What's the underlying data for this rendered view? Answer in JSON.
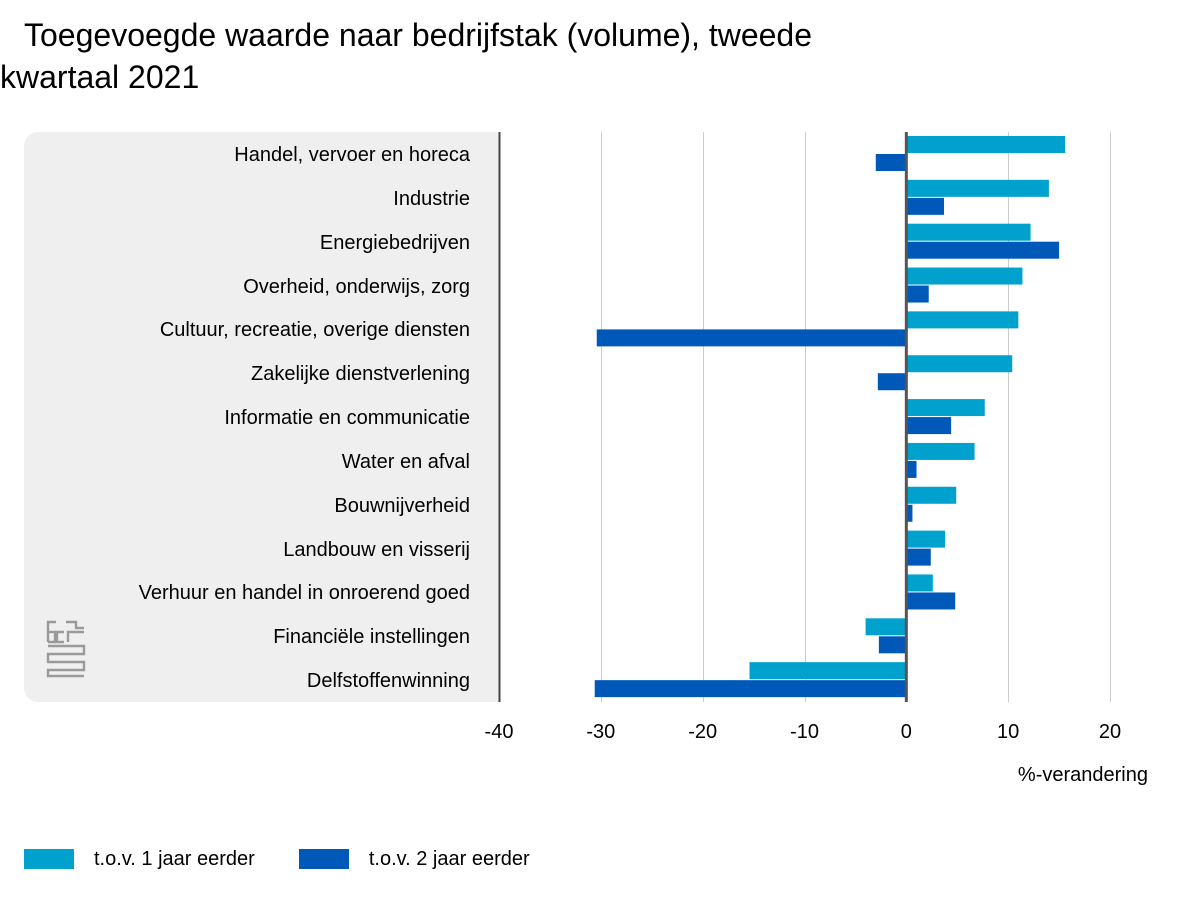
{
  "chart_data": {
    "type": "bar",
    "orientation": "horizontal",
    "title": "Toegevoegde waarde naar bedrijfstak (volume), tweede kwartaal 2021",
    "xlabel": "%-verandering",
    "ylabel": "",
    "xlim": [
      -40,
      20
    ],
    "xticks": [
      -40,
      -30,
      -20,
      -10,
      0,
      10,
      20
    ],
    "grid": true,
    "legend_position": "bottom-left",
    "categories": [
      "Handel, vervoer en horeca",
      "Industrie",
      "Energiebedrijven",
      "Overheid, onderwijs, zorg",
      "Cultuur, recreatie, overige diensten",
      "Zakelijke dienstverlening",
      "Informatie en communicatie",
      "Water en afval",
      "Bouwnijverheid",
      "Landbouw en visserij",
      "Verhuur en handel in onroerend goed",
      "Financiële instellingen",
      "Delfstoffenwinning"
    ],
    "series": [
      {
        "name": "t.o.v. 1 jaar eerder",
        "color": "#00a1cd",
        "values": [
          15.6,
          14.0,
          12.2,
          11.4,
          11.0,
          10.4,
          7.7,
          6.7,
          4.9,
          3.8,
          2.6,
          -4.0,
          -15.4
        ]
      },
      {
        "name": "t.o.v. 2 jaar eerder",
        "color": "#0058b8",
        "values": [
          -3.0,
          3.7,
          15.0,
          2.2,
          -30.4,
          -2.8,
          4.4,
          1.0,
          0.6,
          2.4,
          4.8,
          -2.7,
          -30.6
        ]
      }
    ]
  },
  "colors": {
    "panel_background": "#efefef",
    "gridline": "#cccccc",
    "zero_axis": "#555555",
    "logo": "#9a9a9a"
  },
  "logo": {
    "icon": "cbs-logo-icon"
  }
}
